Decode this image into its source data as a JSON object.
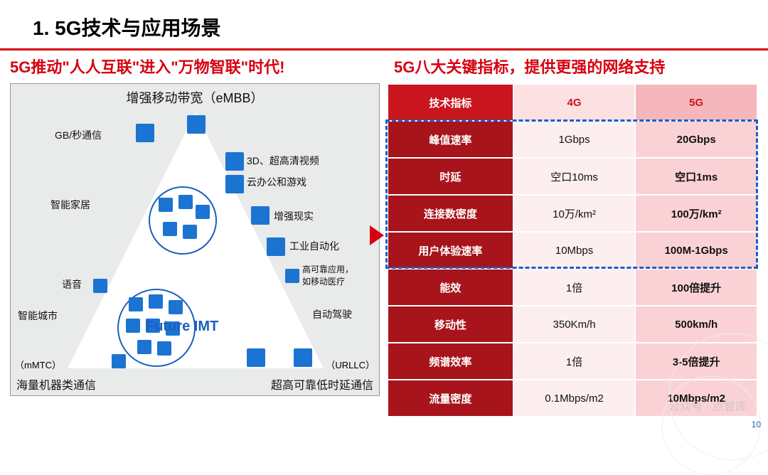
{
  "title": "1. 5G技术与应用场景",
  "subLeft": "5G推动\"人人互联\"进入\"万物智联\"时代!",
  "subRight": "5G八大关键指标，提供更强的网络支持",
  "triangle": {
    "top": "增强移动带宽（eMBB）",
    "bottomLeft": "海量机器类通信",
    "bottomRight": "超高可靠低时延通信",
    "mmtc": "（mMTC）",
    "urllc": "（URLLC）",
    "future": "Future IMT",
    "labels": {
      "gb": "GB/秒通信",
      "smartHome": "智能家居",
      "voice": "语音",
      "smartCity": "智能城市",
      "hd3d": "3D、超高清视频",
      "cloud": "云办公和游戏",
      "ar": "增强现实",
      "industry": "工业自动化",
      "medical": "高可靠应用，\n如移动医疗",
      "autoDrive": "自动驾驶"
    }
  },
  "table": {
    "headers": {
      "metric": "技术指标",
      "g4": "4G",
      "g5": "5G"
    },
    "rows": [
      {
        "metric": "峰值速率",
        "g4": "1Gbps",
        "g5": "20Gbps"
      },
      {
        "metric": "时延",
        "g4": "空口10ms",
        "g5": "空口1ms"
      },
      {
        "metric": "连接数密度",
        "g4": "10万/km²",
        "g5": "100万/km²"
      },
      {
        "metric": "用户体验速率",
        "g4": "10Mbps",
        "g5": "100M-1Gbps"
      },
      {
        "metric": "能效",
        "g4": "1倍",
        "g5": "100倍提升"
      },
      {
        "metric": "移动性",
        "g4": "350Km/h",
        "g5": "500km/h"
      },
      {
        "metric": "频谱效率",
        "g4": "1倍",
        "g5": "3-5倍提升"
      },
      {
        "metric": "流量密度",
        "g4": "0.1Mbps/m2",
        "g5": "10Mbps/m2"
      }
    ],
    "highlightRows": [
      0,
      1,
      2,
      3
    ]
  },
  "style": {
    "red": "#d7000f",
    "darkRed": "#a8141b",
    "headerRed": "#c9151e",
    "light4g": "#fdeeef",
    "light5g": "#fad2d5",
    "dashBlue": "#1a5ec9",
    "nodeBlue": "#1b74d1",
    "bgGray": "#e9eaea"
  },
  "pageNum": "10",
  "watermark": "公众号 · 点智库"
}
